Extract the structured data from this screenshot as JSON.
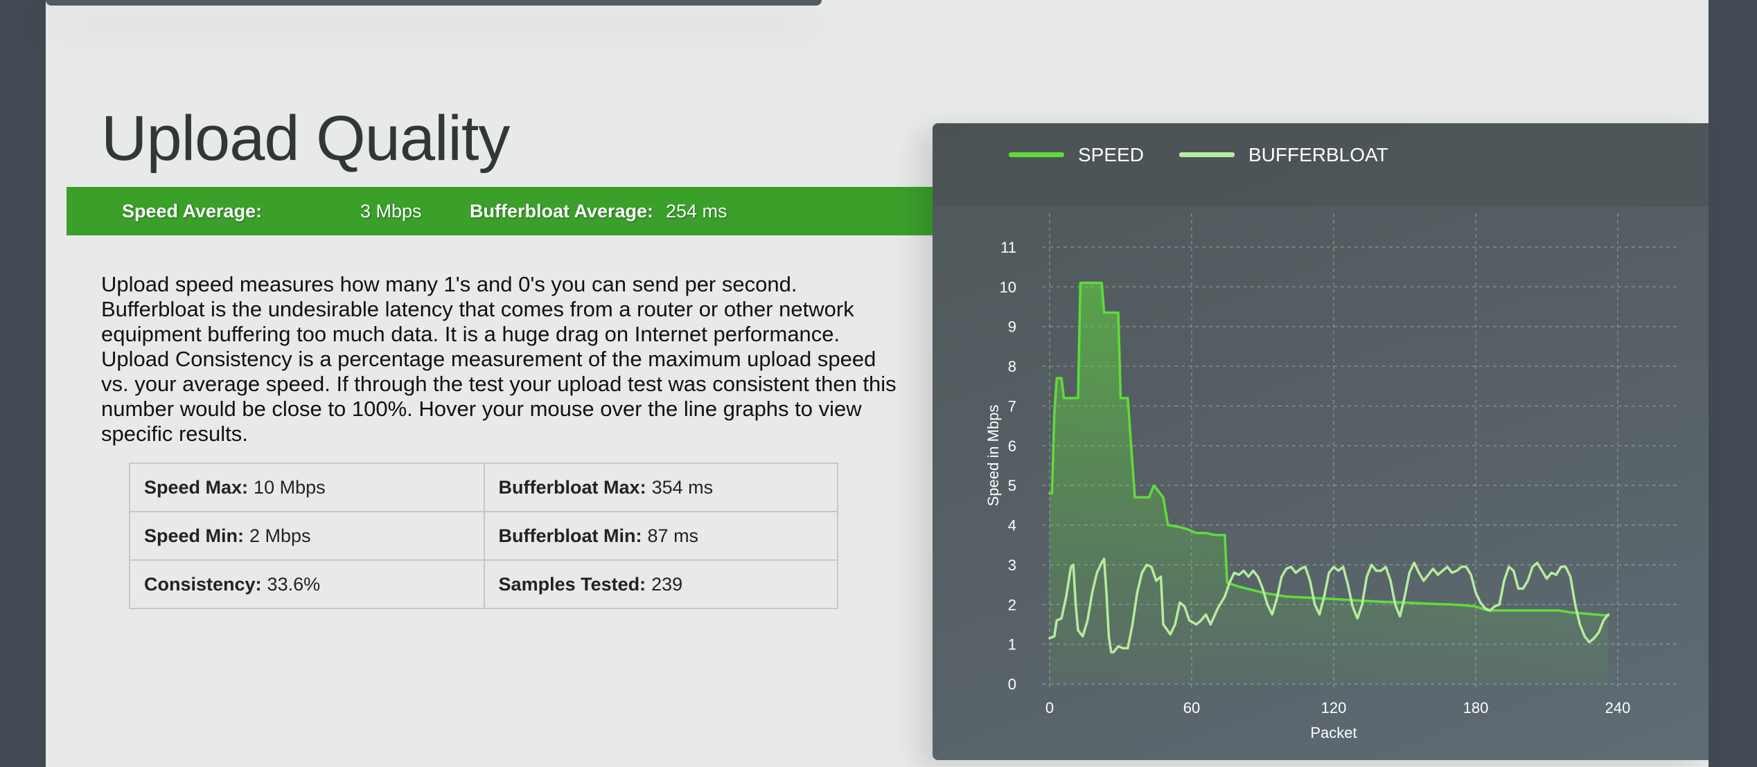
{
  "heading": "Upload Quality",
  "averages": {
    "speed_label": "Speed Average:",
    "speed_value": "3 Mbps",
    "bufferbloat_label": "Bufferbloat Average:",
    "bufferbloat_value": "254 ms"
  },
  "description": "Upload speed measures how many 1's and 0's you can send per second. Bufferbloat is the undesirable latency that comes from a router or other network equipment buffering too much data. It is a huge drag on Internet performance. Upload Consistency is a percentage measurement of the maximum upload speed vs. your average speed. If through the test your upload test was consistent then this number would be close to 100%. Hover your mouse over the line graphs to view specific results.",
  "stats": {
    "speed_max": {
      "label": "Speed Max:",
      "value": "10 Mbps"
    },
    "bufferbloat_max": {
      "label": "Bufferbloat Max:",
      "value": "354 ms"
    },
    "speed_min": {
      "label": "Speed Min:",
      "value": "2 Mbps"
    },
    "bufferbloat_min": {
      "label": "Bufferbloat Min:",
      "value": "87 ms"
    },
    "consistency": {
      "label": "Consistency:",
      "value": "33.6%"
    },
    "samples": {
      "label": "Samples Tested:",
      "value": "239"
    }
  },
  "colors": {
    "speed": "#5fdc3a",
    "bufferbloat": "#b6ec9e",
    "green_bar": "#3aa02a"
  },
  "chart_data": {
    "type": "line",
    "legend": [
      "SPEED",
      "BUFFERBLOAT"
    ],
    "xlabel": "Packet",
    "ylabel": "Speed in Mbps",
    "xlim": [
      0,
      240
    ],
    "ylim": [
      0,
      11
    ],
    "xticks": [
      0,
      60,
      120,
      180,
      240
    ],
    "yticks": [
      0,
      1,
      2,
      3,
      4,
      5,
      6,
      7,
      8,
      9,
      10,
      11
    ],
    "grid": true,
    "legend_position": "top-left",
    "series": [
      {
        "name": "SPEED",
        "fill": true,
        "points": [
          [
            0,
            4.8
          ],
          [
            1,
            4.8
          ],
          [
            2,
            6.8
          ],
          [
            3,
            7.7
          ],
          [
            5,
            7.7
          ],
          [
            6,
            7.2
          ],
          [
            12,
            7.2
          ],
          [
            13,
            10.1
          ],
          [
            22,
            10.1
          ],
          [
            23,
            9.35
          ],
          [
            29,
            9.35
          ],
          [
            30,
            7.2
          ],
          [
            33,
            7.2
          ],
          [
            36,
            4.7
          ],
          [
            42,
            4.7
          ],
          [
            44,
            5.0
          ],
          [
            48,
            4.7
          ],
          [
            50,
            4.0
          ],
          [
            55,
            3.95
          ],
          [
            58,
            3.9
          ],
          [
            62,
            3.8
          ],
          [
            66,
            3.8
          ],
          [
            70,
            3.75
          ],
          [
            74,
            3.75
          ],
          [
            75,
            2.55
          ],
          [
            80,
            2.45
          ],
          [
            90,
            2.3
          ],
          [
            100,
            2.2
          ],
          [
            110,
            2.17
          ],
          [
            120,
            2.14
          ],
          [
            130,
            2.1
          ],
          [
            140,
            2.07
          ],
          [
            150,
            2.05
          ],
          [
            160,
            2.02
          ],
          [
            170,
            2.0
          ],
          [
            175,
            1.98
          ],
          [
            180,
            1.95
          ],
          [
            185,
            1.85
          ],
          [
            200,
            1.85
          ],
          [
            215,
            1.85
          ],
          [
            220,
            1.8
          ],
          [
            225,
            1.78
          ],
          [
            230,
            1.75
          ],
          [
            236,
            1.72
          ]
        ]
      },
      {
        "name": "BUFFERBLOAT",
        "points": [
          [
            0,
            1.15
          ],
          [
            2,
            1.2
          ],
          [
            3,
            1.6
          ],
          [
            5,
            1.65
          ],
          [
            7,
            2.2
          ],
          [
            9,
            2.95
          ],
          [
            10,
            3.0
          ],
          [
            11,
            2.0
          ],
          [
            12,
            1.35
          ],
          [
            14,
            1.2
          ],
          [
            16,
            1.6
          ],
          [
            18,
            2.3
          ],
          [
            20,
            2.8
          ],
          [
            22,
            3.05
          ],
          [
            23,
            3.15
          ],
          [
            24,
            2.3
          ],
          [
            25,
            1.2
          ],
          [
            26,
            0.8
          ],
          [
            27,
            0.8
          ],
          [
            29,
            0.95
          ],
          [
            31,
            0.9
          ],
          [
            33,
            0.9
          ],
          [
            35,
            1.5
          ],
          [
            37,
            2.3
          ],
          [
            39,
            2.8
          ],
          [
            41,
            3.0
          ],
          [
            43,
            2.95
          ],
          [
            45,
            2.6
          ],
          [
            47,
            2.7
          ],
          [
            48,
            1.5
          ],
          [
            51,
            1.25
          ],
          [
            53,
            1.5
          ],
          [
            55,
            2.05
          ],
          [
            57,
            1.95
          ],
          [
            59,
            1.6
          ],
          [
            62,
            1.5
          ],
          [
            64,
            1.6
          ],
          [
            66,
            1.75
          ],
          [
            68,
            1.5
          ],
          [
            71,
            1.9
          ],
          [
            74,
            2.2
          ],
          [
            76,
            2.55
          ],
          [
            78,
            2.8
          ],
          [
            80,
            2.75
          ],
          [
            82,
            2.85
          ],
          [
            84,
            2.7
          ],
          [
            86,
            2.85
          ],
          [
            88,
            2.7
          ],
          [
            90,
            2.4
          ],
          [
            92,
            2.0
          ],
          [
            94,
            1.75
          ],
          [
            96,
            2.15
          ],
          [
            98,
            2.7
          ],
          [
            100,
            2.9
          ],
          [
            102,
            2.95
          ],
          [
            104,
            2.8
          ],
          [
            106,
            2.9
          ],
          [
            108,
            2.95
          ],
          [
            110,
            2.6
          ],
          [
            112,
            2.0
          ],
          [
            114,
            1.75
          ],
          [
            116,
            2.2
          ],
          [
            118,
            2.8
          ],
          [
            120,
            2.95
          ],
          [
            122,
            2.85
          ],
          [
            124,
            2.95
          ],
          [
            126,
            2.5
          ],
          [
            128,
            1.95
          ],
          [
            130,
            1.65
          ],
          [
            132,
            2.0
          ],
          [
            134,
            2.7
          ],
          [
            136,
            3.0
          ],
          [
            138,
            2.85
          ],
          [
            140,
            2.85
          ],
          [
            142,
            2.95
          ],
          [
            144,
            2.6
          ],
          [
            146,
            2.0
          ],
          [
            148,
            1.7
          ],
          [
            150,
            2.2
          ],
          [
            152,
            2.8
          ],
          [
            154,
            3.05
          ],
          [
            156,
            2.8
          ],
          [
            158,
            2.6
          ],
          [
            160,
            2.75
          ],
          [
            162,
            2.9
          ],
          [
            164,
            2.75
          ],
          [
            166,
            2.85
          ],
          [
            168,
            2.95
          ],
          [
            170,
            2.8
          ],
          [
            172,
            2.85
          ],
          [
            174,
            2.95
          ],
          [
            176,
            2.95
          ],
          [
            178,
            2.75
          ],
          [
            180,
            2.3
          ],
          [
            182,
            2.05
          ],
          [
            184,
            1.9
          ],
          [
            186,
            1.85
          ],
          [
            188,
            1.95
          ],
          [
            190,
            2.0
          ],
          [
            192,
            2.6
          ],
          [
            194,
            2.95
          ],
          [
            196,
            2.85
          ],
          [
            198,
            2.4
          ],
          [
            200,
            2.4
          ],
          [
            202,
            2.6
          ],
          [
            204,
            2.95
          ],
          [
            206,
            3.05
          ],
          [
            208,
            2.85
          ],
          [
            210,
            2.65
          ],
          [
            212,
            2.8
          ],
          [
            214,
            2.75
          ],
          [
            216,
            2.95
          ],
          [
            218,
            2.95
          ],
          [
            220,
            2.7
          ],
          [
            222,
            2.0
          ],
          [
            224,
            1.5
          ],
          [
            226,
            1.2
          ],
          [
            228,
            1.05
          ],
          [
            230,
            1.15
          ],
          [
            232,
            1.3
          ],
          [
            234,
            1.6
          ],
          [
            236,
            1.75
          ]
        ]
      }
    ]
  }
}
